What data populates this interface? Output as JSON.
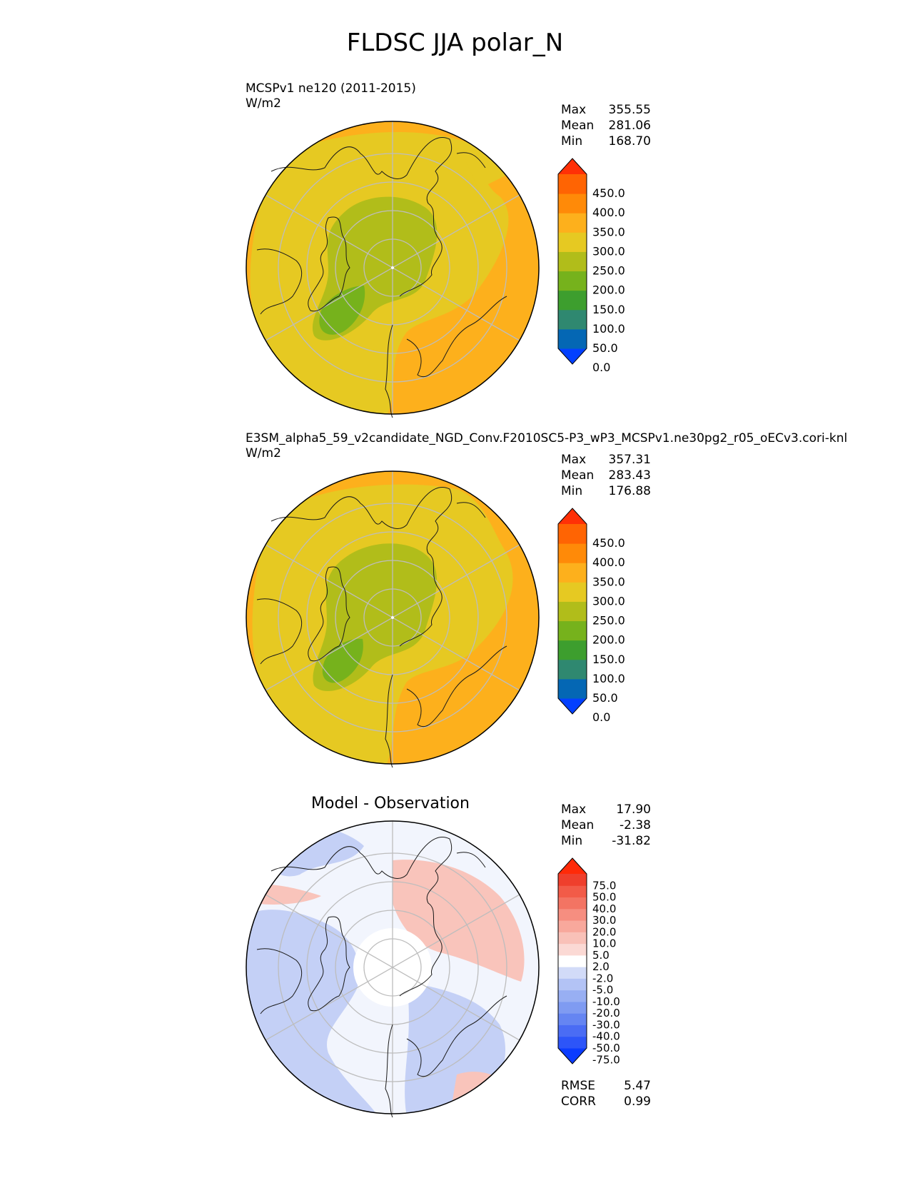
{
  "figure": {
    "title": "FLDSC JJA polar_N"
  },
  "panels": [
    {
      "id": "test",
      "subtitle": "MCSPv1 ne120 (2011-2015)",
      "units": "W/m2",
      "stats": {
        "max_label": "Max",
        "max": "355.55",
        "mean_label": "Mean",
        "mean": "281.06",
        "min_label": "Min",
        "min": "168.70"
      },
      "colorbar": {
        "labels": [
          "450.0",
          "400.0",
          "350.0",
          "300.0",
          "250.0",
          "200.0",
          "150.0",
          "100.0",
          "50.0",
          "0.0"
        ],
        "colors": [
          "#0340ff",
          "#0467b4",
          "#2f8870",
          "#3d9e2e",
          "#76b21c",
          "#b1bd1a",
          "#e6c922",
          "#fdb01c",
          "#ff8a08",
          "#ff6403",
          "#ff3006"
        ]
      }
    },
    {
      "id": "reference",
      "subtitle": "E3SM_alpha5_59_v2candidate_NGD_Conv.F2010SC5-P3_wP3_MCSPv1.ne30pg2_r05_oECv3.cori-knl",
      "units": "W/m2",
      "stats": {
        "max_label": "Max",
        "max": "357.31",
        "mean_label": "Mean",
        "mean": "283.43",
        "min_label": "Min",
        "min": "176.88"
      },
      "colorbar": {
        "labels": [
          "450.0",
          "400.0",
          "350.0",
          "300.0",
          "250.0",
          "200.0",
          "150.0",
          "100.0",
          "50.0",
          "0.0"
        ],
        "colors": [
          "#0340ff",
          "#0467b4",
          "#2f8870",
          "#3d9e2e",
          "#76b21c",
          "#b1bd1a",
          "#e6c922",
          "#fdb01c",
          "#ff8a08",
          "#ff6403",
          "#ff3006"
        ]
      }
    },
    {
      "id": "difference",
      "title": "Model - Observation",
      "stats": {
        "max_label": "Max",
        "max": "17.90",
        "mean_label": "Mean",
        "mean": "-2.38",
        "min_label": "Min",
        "min": "-31.82"
      },
      "colorbar": {
        "labels": [
          "75.0",
          "50.0",
          "40.0",
          "30.0",
          "20.0",
          "10.0",
          "5.0",
          "2.0",
          "-2.0",
          "-5.0",
          "-10.0",
          "-20.0",
          "-30.0",
          "-40.0",
          "-50.0",
          "-75.0"
        ],
        "colors": [
          "#0b3cff",
          "#2d55f8",
          "#4a6cf4",
          "#6585f2",
          "#7f9bf2",
          "#98aff3",
          "#b3c3f5",
          "#d2dbf8",
          "#ffffff",
          "#fbd9d4",
          "#f9c1b8",
          "#f8a89c",
          "#f68e80",
          "#f37463",
          "#f25b48",
          "#ef3f2c",
          "#ff2a08"
        ]
      },
      "metrics": {
        "rmse_label": "RMSE",
        "rmse": "5.47",
        "corr_label": "CORR",
        "corr": "0.99"
      }
    }
  ],
  "map": {
    "projection": "north polar stereographic",
    "colors": {
      "outer_band": "#fdb01c",
      "mid_band": "#e6c922",
      "inner_ice": "#b1bd1a",
      "greenland": "#76b21c",
      "diff_background": "#f2f5fd",
      "diff_blue": "#c4d0f6",
      "diff_red": "#f9c4bb",
      "gridline": "#bdbdbd",
      "coast": "#1a1a1a"
    }
  }
}
